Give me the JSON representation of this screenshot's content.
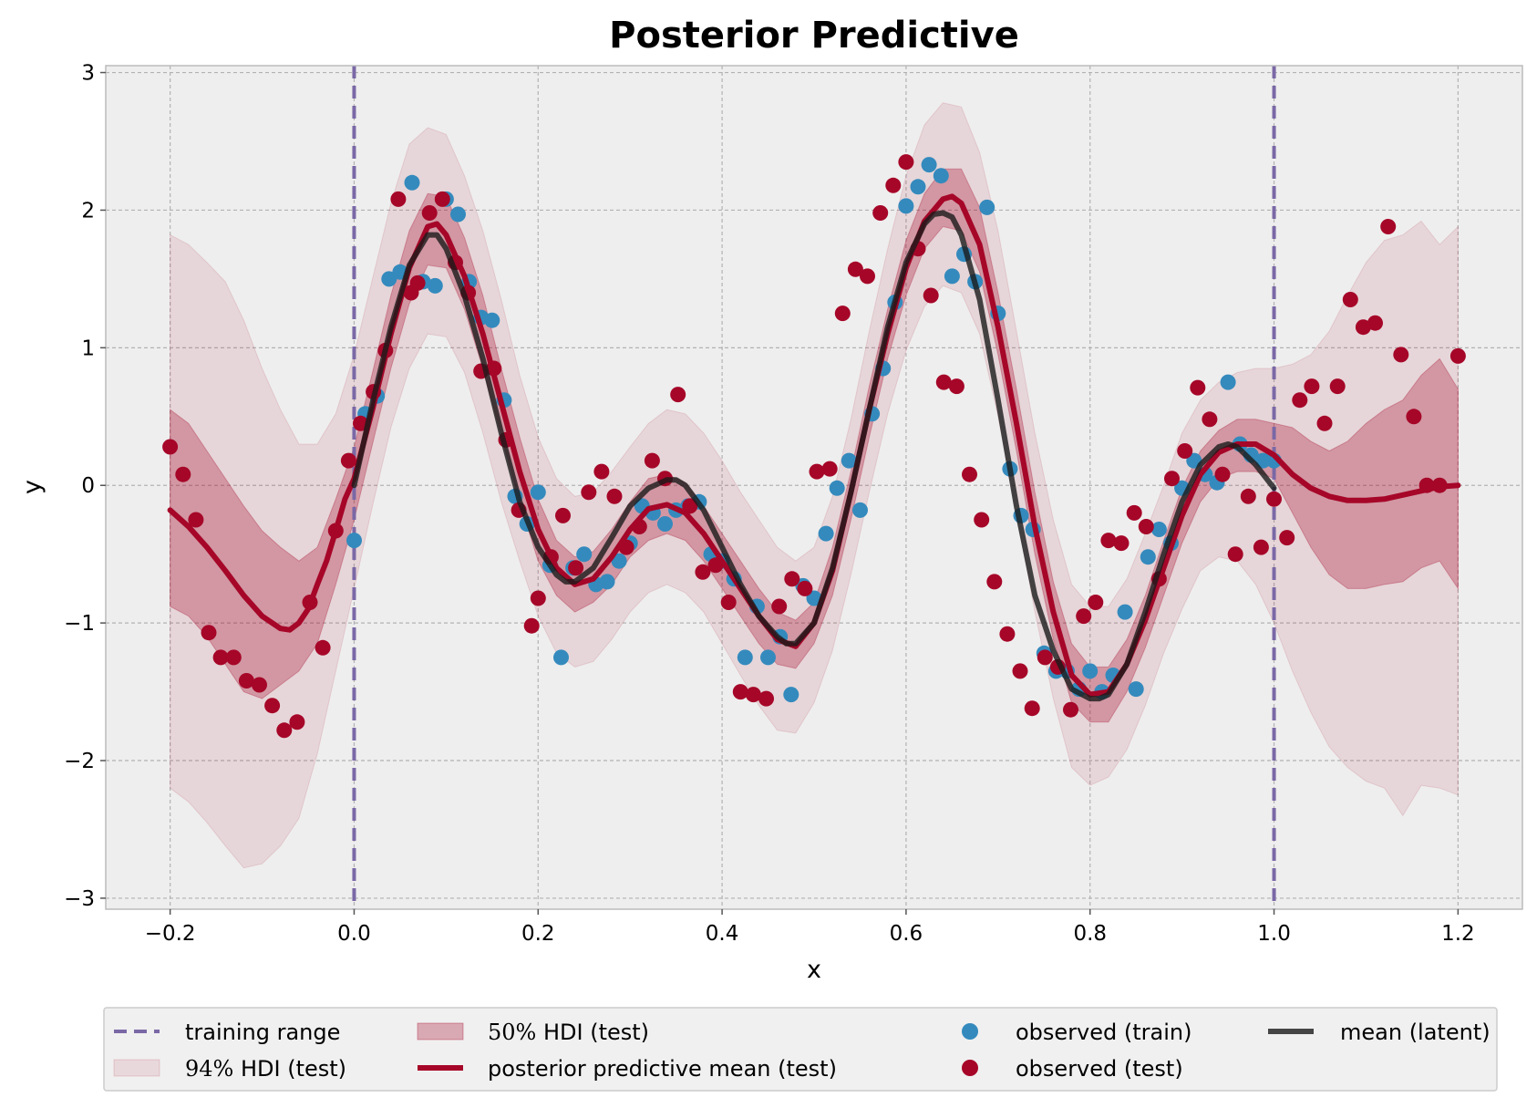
{
  "chart_data": {
    "type": "line",
    "title": "Posterior Predictive",
    "xlabel": "x",
    "ylabel": "y",
    "xlim": [
      -0.27,
      1.27
    ],
    "ylim": [
      -3.08,
      3.05
    ],
    "grid": true,
    "legend_placement": "bottom",
    "xticks": [
      -0.2,
      0.0,
      0.2,
      0.4,
      0.6,
      0.8,
      1.0,
      1.2
    ],
    "xtick_labels": [
      "−0.2",
      "0.0",
      "0.2",
      "0.4",
      "0.6",
      "0.8",
      "1.0",
      "1.2"
    ],
    "yticks": [
      -3,
      -2,
      -1,
      0,
      1,
      2,
      3
    ],
    "ytick_labels": [
      "−3",
      "−2",
      "−1",
      "0",
      "1",
      "2",
      "3"
    ],
    "training_range": [
      0.0,
      1.0
    ],
    "legend": {
      "training_range": "training range",
      "hdi94_math": "94%",
      "hdi94_text": " HDI (test)",
      "hdi50_math": "50%",
      "hdi50_text": " HDI (test)",
      "pp_mean": "posterior predictive mean (test)",
      "obs_train": "observed (train)",
      "obs_test": "observed (test)",
      "mean_latent": "mean (latent)"
    },
    "colors": {
      "background": "#eeeeee",
      "grid": "#b2b2b2",
      "training_range": "#7a68a6",
      "hdi94": "#a60628",
      "hdi50": "#a60628",
      "pp_mean": "#a60628",
      "obs_train": "#348abd",
      "obs_test": "#a60628",
      "mean_latent": "#1a1a1a"
    },
    "pp_mean": {
      "x": [
        -0.2,
        -0.18,
        -0.16,
        -0.14,
        -0.12,
        -0.1,
        -0.08,
        -0.07,
        -0.06,
        -0.05,
        -0.04,
        -0.03,
        -0.02,
        -0.01,
        0.0,
        0.02,
        0.04,
        0.06,
        0.08,
        0.09,
        0.1,
        0.12,
        0.14,
        0.16,
        0.18,
        0.2,
        0.22,
        0.24,
        0.26,
        0.28,
        0.3,
        0.32,
        0.34,
        0.36,
        0.38,
        0.4,
        0.42,
        0.44,
        0.46,
        0.48,
        0.5,
        0.52,
        0.54,
        0.56,
        0.58,
        0.6,
        0.62,
        0.64,
        0.65,
        0.66,
        0.68,
        0.7,
        0.72,
        0.74,
        0.76,
        0.78,
        0.8,
        0.82,
        0.84,
        0.86,
        0.88,
        0.9,
        0.92,
        0.94,
        0.96,
        0.98,
        1.0,
        1.02,
        1.04,
        1.06,
        1.08,
        1.1,
        1.12,
        1.14,
        1.16,
        1.18,
        1.2
      ],
      "y": [
        -0.18,
        -0.3,
        -0.45,
        -0.62,
        -0.8,
        -0.95,
        -1.04,
        -1.05,
        -1.0,
        -0.9,
        -0.72,
        -0.55,
        -0.33,
        -0.1,
        0.05,
        0.55,
        1.1,
        1.58,
        1.88,
        1.9,
        1.82,
        1.52,
        1.1,
        0.6,
        0.1,
        -0.32,
        -0.6,
        -0.72,
        -0.68,
        -0.52,
        -0.32,
        -0.17,
        -0.14,
        -0.2,
        -0.35,
        -0.55,
        -0.75,
        -0.95,
        -1.12,
        -1.17,
        -1.0,
        -0.62,
        -0.05,
        0.55,
        1.1,
        1.58,
        1.92,
        2.08,
        2.1,
        2.05,
        1.75,
        1.15,
        0.45,
        -0.3,
        -0.92,
        -1.38,
        -1.52,
        -1.5,
        -1.3,
        -0.98,
        -0.6,
        -0.22,
        0.08,
        0.24,
        0.3,
        0.3,
        0.22,
        0.08,
        -0.02,
        -0.08,
        -0.11,
        -0.11,
        -0.1,
        -0.07,
        -0.04,
        -0.01,
        0.0
      ]
    },
    "mean_latent": {
      "x": [
        0.0,
        0.02,
        0.04,
        0.06,
        0.08,
        0.09,
        0.1,
        0.12,
        0.14,
        0.16,
        0.18,
        0.2,
        0.22,
        0.23,
        0.24,
        0.26,
        0.28,
        0.3,
        0.32,
        0.34,
        0.35,
        0.36,
        0.38,
        0.4,
        0.42,
        0.44,
        0.46,
        0.47,
        0.48,
        0.5,
        0.52,
        0.54,
        0.56,
        0.58,
        0.6,
        0.62,
        0.63,
        0.64,
        0.65,
        0.66,
        0.68,
        0.7,
        0.72,
        0.74,
        0.76,
        0.78,
        0.8,
        0.81,
        0.82,
        0.84,
        0.86,
        0.88,
        0.9,
        0.92,
        0.94,
        0.95,
        0.96,
        0.98,
        1.0
      ],
      "y": [
        0.0,
        0.6,
        1.15,
        1.6,
        1.82,
        1.82,
        1.72,
        1.38,
        0.92,
        0.38,
        -0.12,
        -0.45,
        -0.65,
        -0.7,
        -0.7,
        -0.6,
        -0.38,
        -0.15,
        -0.02,
        0.04,
        0.04,
        0.0,
        -0.18,
        -0.45,
        -0.72,
        -0.95,
        -1.1,
        -1.15,
        -1.15,
        -1.0,
        -0.6,
        -0.05,
        0.55,
        1.15,
        1.62,
        1.9,
        1.97,
        1.98,
        1.95,
        1.82,
        1.35,
        0.62,
        -0.15,
        -0.8,
        -1.2,
        -1.48,
        -1.55,
        -1.55,
        -1.52,
        -1.3,
        -0.92,
        -0.5,
        -0.12,
        0.15,
        0.28,
        0.3,
        0.28,
        0.15,
        -0.02
      ]
    },
    "hdi50": {
      "x": [
        -0.2,
        -0.18,
        -0.16,
        -0.14,
        -0.12,
        -0.1,
        -0.08,
        -0.06,
        -0.04,
        -0.02,
        0.0,
        0.02,
        0.04,
        0.06,
        0.08,
        0.1,
        0.12,
        0.14,
        0.16,
        0.18,
        0.2,
        0.22,
        0.24,
        0.26,
        0.28,
        0.3,
        0.32,
        0.34,
        0.36,
        0.38,
        0.4,
        0.42,
        0.44,
        0.46,
        0.48,
        0.5,
        0.52,
        0.54,
        0.56,
        0.58,
        0.6,
        0.62,
        0.64,
        0.66,
        0.68,
        0.7,
        0.72,
        0.74,
        0.76,
        0.78,
        0.8,
        0.82,
        0.84,
        0.86,
        0.88,
        0.9,
        0.92,
        0.94,
        0.96,
        0.98,
        1.0,
        1.02,
        1.04,
        1.06,
        1.08,
        1.1,
        1.12,
        1.14,
        1.16,
        1.18,
        1.2
      ],
      "lower": [
        -0.88,
        -0.95,
        -1.1,
        -1.3,
        -1.5,
        -1.55,
        -1.45,
        -1.35,
        -1.15,
        -0.72,
        -0.25,
        0.3,
        0.85,
        1.32,
        1.6,
        1.58,
        1.28,
        0.85,
        0.36,
        -0.12,
        -0.55,
        -0.8,
        -0.92,
        -0.85,
        -0.72,
        -0.52,
        -0.4,
        -0.35,
        -0.4,
        -0.55,
        -0.75,
        -0.95,
        -1.15,
        -1.3,
        -1.33,
        -1.15,
        -0.8,
        -0.25,
        0.35,
        0.92,
        1.38,
        1.72,
        1.88,
        1.85,
        1.55,
        0.95,
        0.25,
        -0.5,
        -1.12,
        -1.58,
        -1.72,
        -1.72,
        -1.5,
        -1.18,
        -0.8,
        -0.42,
        -0.12,
        0.05,
        0.1,
        0.1,
        0.05,
        -0.2,
        -0.45,
        -0.65,
        -0.75,
        -0.75,
        -0.72,
        -0.7,
        -0.6,
        -0.55,
        -0.75
      ],
      "upper": [
        0.55,
        0.45,
        0.25,
        0.05,
        -0.15,
        -0.33,
        -0.45,
        -0.55,
        -0.45,
        -0.1,
        0.28,
        0.82,
        1.38,
        1.85,
        2.12,
        2.1,
        1.8,
        1.38,
        0.85,
        0.35,
        -0.1,
        -0.4,
        -0.52,
        -0.48,
        -0.32,
        -0.12,
        0.05,
        0.08,
        0.02,
        -0.15,
        -0.35,
        -0.55,
        -0.75,
        -0.92,
        -0.98,
        -0.85,
        -0.45,
        0.1,
        0.72,
        1.28,
        1.78,
        2.12,
        2.3,
        2.3,
        2.02,
        1.4,
        0.7,
        -0.05,
        -0.7,
        -1.15,
        -1.32,
        -1.32,
        -1.12,
        -0.8,
        -0.4,
        -0.02,
        0.25,
        0.4,
        0.48,
        0.48,
        0.45,
        0.42,
        0.32,
        0.25,
        0.32,
        0.45,
        0.55,
        0.62,
        0.8,
        0.92,
        0.7
      ]
    },
    "hdi94": {
      "x": [
        -0.2,
        -0.18,
        -0.16,
        -0.14,
        -0.12,
        -0.1,
        -0.08,
        -0.06,
        -0.04,
        -0.02,
        0.0,
        0.02,
        0.04,
        0.06,
        0.08,
        0.1,
        0.12,
        0.14,
        0.16,
        0.18,
        0.2,
        0.22,
        0.24,
        0.26,
        0.28,
        0.3,
        0.32,
        0.34,
        0.36,
        0.38,
        0.4,
        0.42,
        0.44,
        0.46,
        0.48,
        0.5,
        0.52,
        0.54,
        0.56,
        0.58,
        0.6,
        0.62,
        0.64,
        0.66,
        0.68,
        0.7,
        0.72,
        0.74,
        0.76,
        0.78,
        0.8,
        0.82,
        0.84,
        0.86,
        0.88,
        0.9,
        0.92,
        0.94,
        0.96,
        0.98,
        1.0,
        1.02,
        1.04,
        1.06,
        1.08,
        1.1,
        1.12,
        1.14,
        1.16,
        1.18,
        1.2
      ],
      "lower": [
        -2.2,
        -2.3,
        -2.45,
        -2.62,
        -2.78,
        -2.75,
        -2.62,
        -2.42,
        -1.95,
        -1.35,
        -0.75,
        -0.15,
        0.42,
        0.85,
        1.1,
        1.08,
        0.82,
        0.38,
        -0.12,
        -0.55,
        -0.95,
        -1.22,
        -1.32,
        -1.28,
        -1.12,
        -0.92,
        -0.78,
        -0.72,
        -0.78,
        -0.92,
        -1.15,
        -1.38,
        -1.6,
        -1.78,
        -1.8,
        -1.58,
        -1.2,
        -0.65,
        -0.05,
        0.52,
        0.98,
        1.3,
        1.45,
        1.4,
        1.1,
        0.5,
        -0.2,
        -0.92,
        -1.55,
        -2.05,
        -2.18,
        -2.12,
        -1.92,
        -1.6,
        -1.22,
        -0.9,
        -0.62,
        -0.52,
        -0.55,
        -0.72,
        -1.0,
        -1.35,
        -1.65,
        -1.9,
        -2.05,
        -2.15,
        -2.2,
        -2.4,
        -2.18,
        -2.2,
        -2.25
      ],
      "upper": [
        1.82,
        1.75,
        1.62,
        1.48,
        1.2,
        0.85,
        0.55,
        0.3,
        0.3,
        0.52,
        0.95,
        1.5,
        2.05,
        2.48,
        2.6,
        2.55,
        2.25,
        1.85,
        1.35,
        0.8,
        0.35,
        0.05,
        -0.08,
        -0.05,
        0.1,
        0.28,
        0.45,
        0.55,
        0.52,
        0.38,
        0.18,
        -0.05,
        -0.25,
        -0.45,
        -0.55,
        -0.45,
        -0.08,
        0.48,
        1.12,
        1.72,
        2.25,
        2.62,
        2.78,
        2.75,
        2.42,
        1.85,
        1.12,
        0.38,
        -0.25,
        -0.72,
        -0.88,
        -0.88,
        -0.68,
        -0.35,
        0.0,
        0.38,
        0.62,
        0.75,
        0.82,
        0.85,
        0.85,
        0.88,
        0.95,
        1.12,
        1.38,
        1.62,
        1.78,
        1.82,
        1.92,
        1.75,
        1.88
      ]
    },
    "observed_train": {
      "x": [
        0.0,
        0.012,
        0.025,
        0.038,
        0.05,
        0.063,
        0.075,
        0.088,
        0.1,
        0.113,
        0.125,
        0.138,
        0.15,
        0.163,
        0.175,
        0.188,
        0.2,
        0.213,
        0.225,
        0.238,
        0.25,
        0.263,
        0.275,
        0.288,
        0.3,
        0.313,
        0.325,
        0.338,
        0.35,
        0.363,
        0.375,
        0.388,
        0.4,
        0.413,
        0.425,
        0.438,
        0.45,
        0.463,
        0.475,
        0.488,
        0.5,
        0.513,
        0.525,
        0.538,
        0.55,
        0.563,
        0.575,
        0.588,
        0.6,
        0.613,
        0.625,
        0.638,
        0.65,
        0.663,
        0.675,
        0.688,
        0.7,
        0.713,
        0.725,
        0.738,
        0.75,
        0.763,
        0.775,
        0.788,
        0.8,
        0.813,
        0.825,
        0.838,
        0.85,
        0.863,
        0.875,
        0.888,
        0.9,
        0.913,
        0.925,
        0.938,
        0.95,
        0.963,
        0.975,
        0.988,
        1.0
      ],
      "y": [
        -0.4,
        0.52,
        0.65,
        1.5,
        1.55,
        2.2,
        1.48,
        1.45,
        2.08,
        1.97,
        1.48,
        1.22,
        1.2,
        0.62,
        -0.08,
        -0.28,
        -0.05,
        -0.58,
        -1.25,
        -0.6,
        -0.5,
        -0.72,
        -0.7,
        -0.55,
        -0.42,
        -0.15,
        -0.2,
        -0.28,
        -0.18,
        -0.15,
        -0.12,
        -0.5,
        -0.55,
        -0.68,
        -1.25,
        -0.88,
        -1.25,
        -1.1,
        -1.52,
        -0.73,
        -0.82,
        -0.35,
        -0.02,
        0.18,
        -0.18,
        0.52,
        0.85,
        1.33,
        2.03,
        2.17,
        2.33,
        2.25,
        1.52,
        1.68,
        1.48,
        2.02,
        1.25,
        0.12,
        -0.22,
        -0.32,
        -1.22,
        -1.35,
        -1.35,
        -1.48,
        -1.35,
        -1.5,
        -1.38,
        -0.92,
        -1.48,
        -0.52,
        -0.32,
        -0.42,
        -0.02,
        0.18,
        0.08,
        0.02,
        0.75,
        0.3,
        0.22,
        0.18,
        0.18
      ]
    },
    "observed_test": {
      "x": [
        -0.2,
        -0.186,
        -0.172,
        -0.158,
        -0.145,
        -0.131,
        -0.117,
        -0.103,
        -0.089,
        -0.076,
        -0.062,
        -0.048,
        -0.034,
        -0.02,
        -0.006,
        0.007,
        0.021,
        0.034,
        0.048,
        0.062,
        0.069,
        0.082,
        0.096,
        0.11,
        0.124,
        0.138,
        0.152,
        0.165,
        0.179,
        0.193,
        0.2,
        0.214,
        0.227,
        0.241,
        0.255,
        0.269,
        0.283,
        0.296,
        0.31,
        0.324,
        0.338,
        0.352,
        0.365,
        0.379,
        0.393,
        0.407,
        0.42,
        0.434,
        0.448,
        0.462,
        0.476,
        0.49,
        0.503,
        0.517,
        0.531,
        0.545,
        0.558,
        0.572,
        0.586,
        0.6,
        0.613,
        0.627,
        0.641,
        0.655,
        0.669,
        0.682,
        0.696,
        0.71,
        0.724,
        0.737,
        0.751,
        0.765,
        0.779,
        0.793,
        0.806,
        0.82,
        0.834,
        0.848,
        0.861,
        0.875,
        0.889,
        0.903,
        0.917,
        0.93,
        0.944,
        0.958,
        0.972,
        0.986,
        1.0,
        1.014,
        1.028,
        1.041,
        1.055,
        1.069,
        1.083,
        1.097,
        1.11,
        1.124,
        1.138,
        1.152,
        1.166,
        1.18,
        1.2
      ],
      "y": [
        0.28,
        0.08,
        -0.25,
        -1.07,
        -1.25,
        -1.25,
        -1.42,
        -1.45,
        -1.6,
        -1.78,
        -1.72,
        -0.85,
        -1.18,
        -0.33,
        0.18,
        0.45,
        0.68,
        0.98,
        2.08,
        1.4,
        1.47,
        1.98,
        2.08,
        1.62,
        1.4,
        0.83,
        0.85,
        0.33,
        -0.18,
        -1.02,
        -0.82,
        -0.52,
        -0.22,
        -0.6,
        -0.05,
        0.1,
        -0.08,
        -0.45,
        -0.3,
        0.18,
        0.05,
        0.66,
        -0.15,
        -0.63,
        -0.58,
        -0.85,
        -1.5,
        -1.52,
        -1.55,
        -0.88,
        -0.68,
        -0.75,
        0.1,
        0.12,
        1.25,
        1.57,
        1.52,
        1.98,
        2.18,
        2.35,
        1.72,
        1.38,
        0.75,
        0.72,
        0.08,
        -0.25,
        -0.7,
        -1.08,
        -1.35,
        -1.62,
        -1.25,
        -1.32,
        -1.63,
        -0.95,
        -0.85,
        -0.4,
        -0.42,
        -0.2,
        -0.3,
        -0.68,
        0.05,
        0.25,
        0.71,
        0.48,
        0.08,
        -0.5,
        -0.08,
        -0.45,
        -0.1,
        -0.38,
        0.62,
        0.72,
        0.45,
        0.72,
        1.35,
        1.15,
        1.18,
        1.88,
        0.95,
        0.5,
        0.0,
        0.0,
        0.94
      ]
    }
  }
}
